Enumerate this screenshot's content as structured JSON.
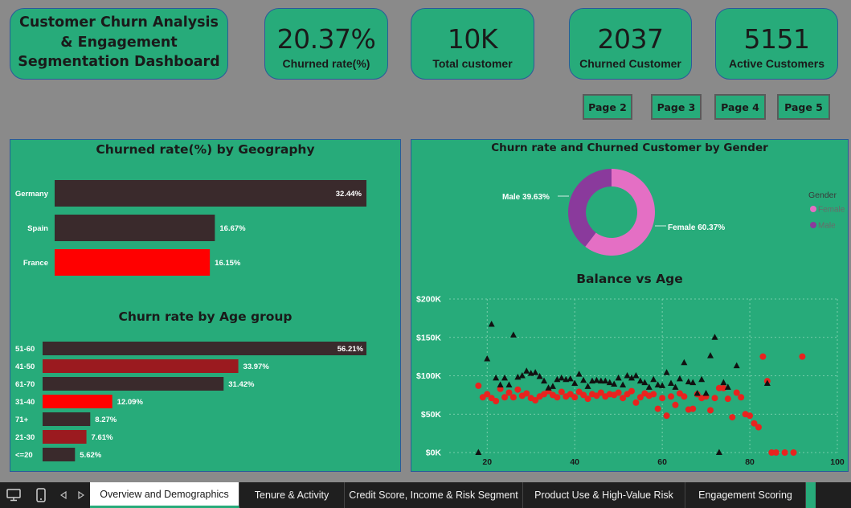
{
  "header": {
    "title_lines": [
      "Customer Churn Analysis",
      "& Engagement",
      "Segmentation Dashboard"
    ]
  },
  "kpis": [
    {
      "value": "20.37%",
      "label": "Churned rate(%)"
    },
    {
      "value": "10K",
      "label": "Total customer"
    },
    {
      "value": "2037",
      "label": "Churned Customer"
    },
    {
      "value": "5151",
      "label": "Active Customers"
    }
  ],
  "page_buttons": [
    "Page 2",
    "Page 3",
    "Page 4",
    "Page 5"
  ],
  "geo": {
    "title": "Churned rate(%) by Geography"
  },
  "age": {
    "title": "Churn rate by Age group"
  },
  "gender": {
    "title": "Churn rate and Churned Customer by Gender",
    "male_label": "Male 39.63%",
    "female_label": "Female 60.37%",
    "legend_title": "Gender",
    "legend_items": [
      "Female",
      "Male"
    ]
  },
  "scatter": {
    "title": "Balance vs Age"
  },
  "tabs": {
    "items": [
      "Overview and Demographics",
      "Tenure & Activity",
      "Credit Score, Income & Risk Segment",
      "Product Use & High-Value Risk",
      "Engagement Scoring"
    ]
  },
  "colors": {
    "bar_dark": "#3a2a2c",
    "bar_red": "#ff0000",
    "bar_maroon": "#9b1a1f",
    "female": "#e46fc4",
    "male": "#8a3a9c",
    "panel": "#27ab7a"
  },
  "chart_data": [
    {
      "type": "bar",
      "orientation": "horizontal",
      "title": "Churned rate(%) by Geography",
      "categories": [
        "Germany",
        "Spain",
        "France"
      ],
      "values": [
        32.44,
        16.67,
        16.15
      ],
      "labels": [
        "32.44%",
        "16.67%",
        "16.15%"
      ],
      "highlight": "France"
    },
    {
      "type": "bar",
      "orientation": "horizontal",
      "title": "Churn rate by Age group",
      "categories": [
        "51-60",
        "41-50",
        "61-70",
        "31-40",
        "71+",
        "21-30",
        "<=20"
      ],
      "values": [
        56.21,
        33.97,
        31.42,
        12.09,
        8.27,
        7.61,
        5.62
      ],
      "labels": [
        "56.21%",
        "33.97%",
        "31.42%",
        "12.09%",
        "8.27%",
        "7.61%",
        "5.62%"
      ],
      "highlight": "31-40"
    },
    {
      "type": "pie",
      "subtype": "donut",
      "title": "Churn rate and Churned Customer by Gender",
      "slices": [
        {
          "name": "Female",
          "value": 60.37
        },
        {
          "name": "Male",
          "value": 39.63
        }
      ],
      "legend": "right"
    },
    {
      "type": "scatter",
      "title": "Balance vs Age",
      "xlim": [
        15,
        100
      ],
      "ylim": [
        0,
        200000
      ],
      "xticks": [
        "20",
        "40",
        "60",
        "80",
        "100"
      ],
      "yticks": [
        "$0K",
        "$50K",
        "$100K",
        "$150K",
        "$200K"
      ],
      "grid": true,
      "series": [
        {
          "marker": "triangle",
          "points": [
            [
              18,
              0
            ],
            [
              20,
              122000
            ],
            [
              21,
              167000
            ],
            [
              22,
              97000
            ],
            [
              23,
              88000
            ],
            [
              24,
              97000
            ],
            [
              25,
              88000
            ],
            [
              26,
              153000
            ],
            [
              27,
              98000
            ],
            [
              28,
              100000
            ],
            [
              29,
              106000
            ],
            [
              30,
              103000
            ],
            [
              31,
              104000
            ],
            [
              32,
              99000
            ],
            [
              33,
              93000
            ],
            [
              34,
              84000
            ],
            [
              35,
              86000
            ],
            [
              36,
              95000
            ],
            [
              37,
              97000
            ],
            [
              38,
              95000
            ],
            [
              39,
              96000
            ],
            [
              40,
              90000
            ],
            [
              41,
              102000
            ],
            [
              42,
              94000
            ],
            [
              43,
              86000
            ],
            [
              44,
              93000
            ],
            [
              45,
              94000
            ],
            [
              46,
              93000
            ],
            [
              47,
              93000
            ],
            [
              48,
              91000
            ],
            [
              49,
              89000
            ],
            [
              50,
              97000
            ],
            [
              51,
              88000
            ],
            [
              52,
              100000
            ],
            [
              53,
              97000
            ],
            [
              54,
              100000
            ],
            [
              55,
              93000
            ],
            [
              56,
              91000
            ],
            [
              57,
              85000
            ],
            [
              58,
              95000
            ],
            [
              59,
              88000
            ],
            [
              60,
              87000
            ],
            [
              61,
              104000
            ],
            [
              62,
              90000
            ],
            [
              63,
              85000
            ],
            [
              64,
              96000
            ],
            [
              65,
              117000
            ],
            [
              66,
              92000
            ],
            [
              67,
              91000
            ],
            [
              68,
              77000
            ],
            [
              69,
              95000
            ],
            [
              70,
              77000
            ],
            [
              71,
              126000
            ],
            [
              72,
              150000
            ],
            [
              73,
              0
            ],
            [
              74,
              91000
            ],
            [
              75,
              85000
            ],
            [
              77,
              113000
            ],
            [
              84,
              90000
            ]
          ]
        },
        {
          "marker": "circle",
          "points": [
            [
              18,
              87000
            ],
            [
              19,
              72000
            ],
            [
              20,
              76000
            ],
            [
              21,
              71000
            ],
            [
              22,
              67000
            ],
            [
              23,
              83000
            ],
            [
              24,
              72000
            ],
            [
              25,
              78000
            ],
            [
              26,
              72000
            ],
            [
              27,
              82000
            ],
            [
              28,
              74000
            ],
            [
              29,
              77000
            ],
            [
              30,
              71000
            ],
            [
              31,
              68000
            ],
            [
              32,
              73000
            ],
            [
              33,
              76000
            ],
            [
              34,
              80000
            ],
            [
              35,
              75000
            ],
            [
              36,
              72000
            ],
            [
              37,
              79000
            ],
            [
              38,
              73000
            ],
            [
              39,
              76000
            ],
            [
              40,
              72000
            ],
            [
              41,
              79000
            ],
            [
              42,
              75000
            ],
            [
              43,
              70000
            ],
            [
              44,
              76000
            ],
            [
              45,
              74000
            ],
            [
              46,
              78000
            ],
            [
              47,
              73000
            ],
            [
              48,
              76000
            ],
            [
              49,
              75000
            ],
            [
              50,
              78000
            ],
            [
              51,
              71000
            ],
            [
              52,
              76000
            ],
            [
              53,
              80000
            ],
            [
              54,
              65000
            ],
            [
              55,
              72000
            ],
            [
              56,
              77000
            ],
            [
              57,
              74000
            ],
            [
              58,
              76000
            ],
            [
              59,
              57000
            ],
            [
              60,
              71000
            ],
            [
              61,
              48000
            ],
            [
              62,
              73000
            ],
            [
              63,
              62000
            ],
            [
              64,
              77000
            ],
            [
              65,
              73000
            ],
            [
              66,
              56000
            ],
            [
              67,
              57000
            ],
            [
              68,
              76000
            ],
            [
              69,
              71000
            ],
            [
              70,
              73000
            ],
            [
              71,
              55000
            ],
            [
              72,
              71000
            ],
            [
              73,
              84000
            ],
            [
              74,
              84000
            ],
            [
              75,
              70000
            ],
            [
              76,
              46000
            ],
            [
              77,
              78000
            ],
            [
              78,
              72000
            ],
            [
              79,
              50000
            ],
            [
              80,
              48000
            ],
            [
              81,
              38000
            ],
            [
              82,
              33000
            ],
            [
              83,
              125000
            ],
            [
              84,
              93000
            ],
            [
              85,
              0
            ],
            [
              86,
              0
            ],
            [
              88,
              0
            ],
            [
              90,
              0
            ],
            [
              92,
              125000
            ]
          ]
        }
      ]
    }
  ]
}
